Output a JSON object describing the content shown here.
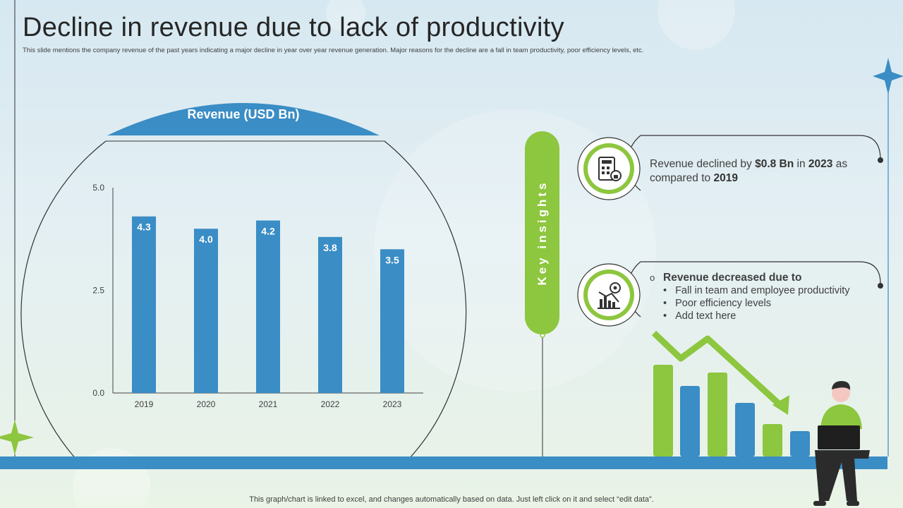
{
  "slide": {
    "title": "Decline in revenue due to lack of productivity",
    "subtitle": "This slide mentions the company revenue of the past years indicating a major decline in year over year revenue generation. Major reasons for the decline are a fall in team productivity, poor efficiency levels, etc.",
    "footnote": "This graph/chart is linked to excel, and changes automatically based on data. Just left click on it and select “edit data”."
  },
  "chart_data": {
    "type": "bar",
    "title": "Revenue (USD Bn)",
    "categories": [
      "2019",
      "2020",
      "2021",
      "2022",
      "2023"
    ],
    "values": [
      4.3,
      4.0,
      4.2,
      3.8,
      3.5
    ],
    "value_labels": [
      "4.3",
      "4.0",
      "4.2",
      "3.8",
      "3.5"
    ],
    "yticks": [
      "0.0",
      "2.5",
      "5.0"
    ],
    "ytick_values": [
      0,
      2.5,
      5.0
    ],
    "ylim": [
      0,
      5.0
    ],
    "xlabel": "",
    "ylabel": "",
    "color": "#3a8dc5"
  },
  "insights": {
    "label": "Key insights",
    "card1": {
      "pre": "Revenue declined by ",
      "amount": "$0.8 Bn",
      "mid": " in ",
      "year": "2023",
      "post": " as compared to ",
      "base_year": "2019"
    },
    "card2": {
      "heading": "Revenue decreased due to",
      "marker": "o",
      "items": [
        "Fall in team and employee productivity",
        "Poor efficiency levels",
        "Add text here"
      ]
    }
  },
  "icons": {
    "card1": "calculator-lock-icon",
    "card2": "declining-chart-gear-icon",
    "illustration": "person-laptop-declining-bars"
  },
  "colors": {
    "blue": "#3a8dc5",
    "green": "#8dc63f",
    "text": "#404040"
  }
}
